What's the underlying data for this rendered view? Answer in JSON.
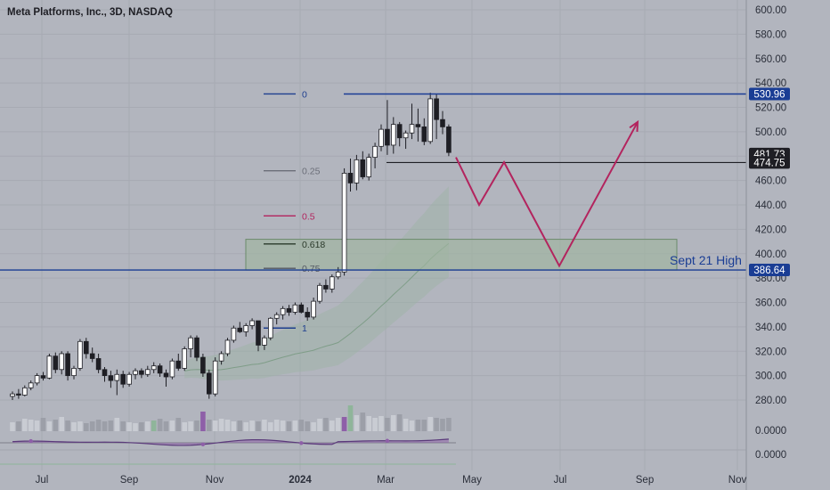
{
  "title": "Meta Platforms, Inc., 3D, NASDAQ",
  "colors": {
    "background": "#b2b5be",
    "axis_background": "#b2b5be",
    "candle_up": "#ffffff",
    "candle_down": "#1e1e24",
    "fib_zero": "#1f3f8f",
    "fib_025": "#6b6e78",
    "fib_05": "#b3245e",
    "fib_0618": "#2b3a2b",
    "fib_075": "#555963",
    "support_line": "#1a3d94",
    "projection": "#b3245e",
    "zone_fill": "#9fb59f",
    "zone_border": "#6b8a6b",
    "band": "#9cb4a4",
    "osc_line": "#5a3a7a",
    "osc_fill": "#8e5fa8"
  },
  "chart_data": {
    "type": "candlestick",
    "title": "Meta Platforms, Inc., 3D, NASDAQ",
    "ylim": [
      262,
      612
    ],
    "y_ticks": [
      "600.00",
      "580.00",
      "560.00",
      "540.00",
      "520.00",
      "500.00",
      "480.00",
      "460.00",
      "440.00",
      "420.00",
      "400.00",
      "380.00",
      "360.00",
      "340.00",
      "320.00",
      "300.00",
      "280.00"
    ],
    "x_ticks": [
      "Jul",
      "Sep",
      "Nov",
      "2024",
      "Mar",
      "May",
      "Jul",
      "Sep",
      "Nov"
    ],
    "candles": [
      [
        283,
        287,
        280,
        285
      ],
      [
        285,
        289,
        281,
        284
      ],
      [
        284,
        292,
        283,
        290
      ],
      [
        290,
        296,
        288,
        294
      ],
      [
        294,
        302,
        292,
        300
      ],
      [
        300,
        303,
        296,
        298
      ],
      [
        298,
        318,
        297,
        316
      ],
      [
        316,
        319,
        302,
        305
      ],
      [
        305,
        320,
        301,
        318
      ],
      [
        318,
        320,
        296,
        300
      ],
      [
        300,
        308,
        297,
        306
      ],
      [
        306,
        330,
        304,
        328
      ],
      [
        328,
        331,
        314,
        318
      ],
      [
        318,
        323,
        311,
        314
      ],
      [
        314,
        318,
        302,
        305
      ],
      [
        305,
        307,
        295,
        300
      ],
      [
        300,
        304,
        290,
        296
      ],
      [
        296,
        305,
        284,
        301
      ],
      [
        301,
        304,
        290,
        293
      ],
      [
        293,
        303,
        291,
        301
      ],
      [
        301,
        306,
        297,
        304
      ],
      [
        304,
        306,
        298,
        301
      ],
      [
        301,
        308,
        299,
        305
      ],
      [
        305,
        311,
        302,
        308
      ],
      [
        308,
        310,
        299,
        302
      ],
      [
        302,
        305,
        291,
        299
      ],
      [
        299,
        314,
        297,
        312
      ],
      [
        312,
        318,
        304,
        306
      ],
      [
        306,
        324,
        304,
        322
      ],
      [
        322,
        333,
        315,
        331
      ],
      [
        331,
        333,
        312,
        315
      ],
      [
        315,
        318,
        299,
        302
      ],
      [
        302,
        305,
        281,
        285
      ],
      [
        285,
        315,
        283,
        312
      ],
      [
        312,
        320,
        309,
        318
      ],
      [
        318,
        331,
        316,
        329
      ],
      [
        329,
        341,
        327,
        339
      ],
      [
        339,
        344,
        335,
        336
      ],
      [
        336,
        343,
        332,
        341
      ],
      [
        341,
        347,
        338,
        345
      ],
      [
        345,
        344,
        320,
        325
      ],
      [
        325,
        333,
        321,
        331
      ],
      [
        331,
        348,
        329,
        347
      ],
      [
        347,
        352,
        342,
        350
      ],
      [
        350,
        357,
        346,
        355
      ],
      [
        355,
        358,
        349,
        352
      ],
      [
        352,
        360,
        350,
        358
      ],
      [
        358,
        360,
        351,
        352
      ],
      [
        352,
        356,
        345,
        348
      ],
      [
        348,
        364,
        346,
        361
      ],
      [
        361,
        376,
        359,
        374
      ],
      [
        374,
        379,
        368,
        371
      ],
      [
        371,
        383,
        368,
        381
      ],
      [
        381,
        389,
        379,
        385
      ],
      [
        385,
        470,
        382,
        466
      ],
      [
        466,
        478,
        451,
        458
      ],
      [
        458,
        481,
        452,
        477
      ],
      [
        477,
        484,
        461,
        463
      ],
      [
        463,
        482,
        460,
        479
      ],
      [
        479,
        491,
        470,
        488
      ],
      [
        488,
        506,
        484,
        502
      ],
      [
        502,
        526,
        481,
        489
      ],
      [
        489,
        512,
        482,
        506
      ],
      [
        506,
        508,
        488,
        495
      ],
      [
        495,
        501,
        486,
        499
      ],
      [
        499,
        523,
        494,
        506
      ],
      [
        506,
        519,
        492,
        504
      ],
      [
        504,
        511,
        489,
        492
      ],
      [
        492,
        532,
        490,
        527
      ],
      [
        527,
        531,
        494,
        510
      ],
      [
        510,
        517,
        498,
        504
      ],
      [
        504,
        506,
        480,
        483
      ]
    ],
    "fib_levels": [
      {
        "label": "0",
        "value": 531
      },
      {
        "label": "0.25",
        "value": 468
      },
      {
        "label": "0.5",
        "value": 431
      },
      {
        "label": "0.618",
        "value": 408
      },
      {
        "label": "0.75",
        "value": 388
      },
      {
        "label": "1",
        "value": 339
      }
    ],
    "price_labels": [
      "530.96",
      "481.73",
      "474.75",
      "386.64"
    ],
    "support_levels": [
      {
        "label": "530.96",
        "value": 530.96
      },
      {
        "label": "474.75",
        "value": 474.75
      },
      {
        "label": "386.64",
        "value": 386.64
      }
    ],
    "zone": {
      "low": 386.6,
      "high": 411.8
    },
    "annotation": "Sept 21 High",
    "projection_path_prices": [
      479,
      440,
      475,
      390,
      508
    ],
    "volume": [
      20,
      22,
      28,
      26,
      24,
      30,
      22,
      26,
      32,
      24,
      20,
      22,
      18,
      22,
      26,
      22,
      24,
      30,
      22,
      20,
      18,
      20,
      22,
      24,
      28,
      22,
      24,
      30,
      20,
      22,
      24,
      44,
      26,
      24,
      28,
      26,
      22,
      24,
      20,
      24,
      22,
      26,
      20,
      26,
      24,
      22,
      24,
      26,
      22,
      20,
      28,
      30,
      24,
      30,
      32,
      58,
      36,
      42,
      34,
      30,
      34,
      30,
      36,
      38,
      28,
      24,
      26,
      26,
      32,
      30,
      28,
      30
    ],
    "oscillator_axis": [
      "0.0000",
      "0.0000"
    ]
  }
}
